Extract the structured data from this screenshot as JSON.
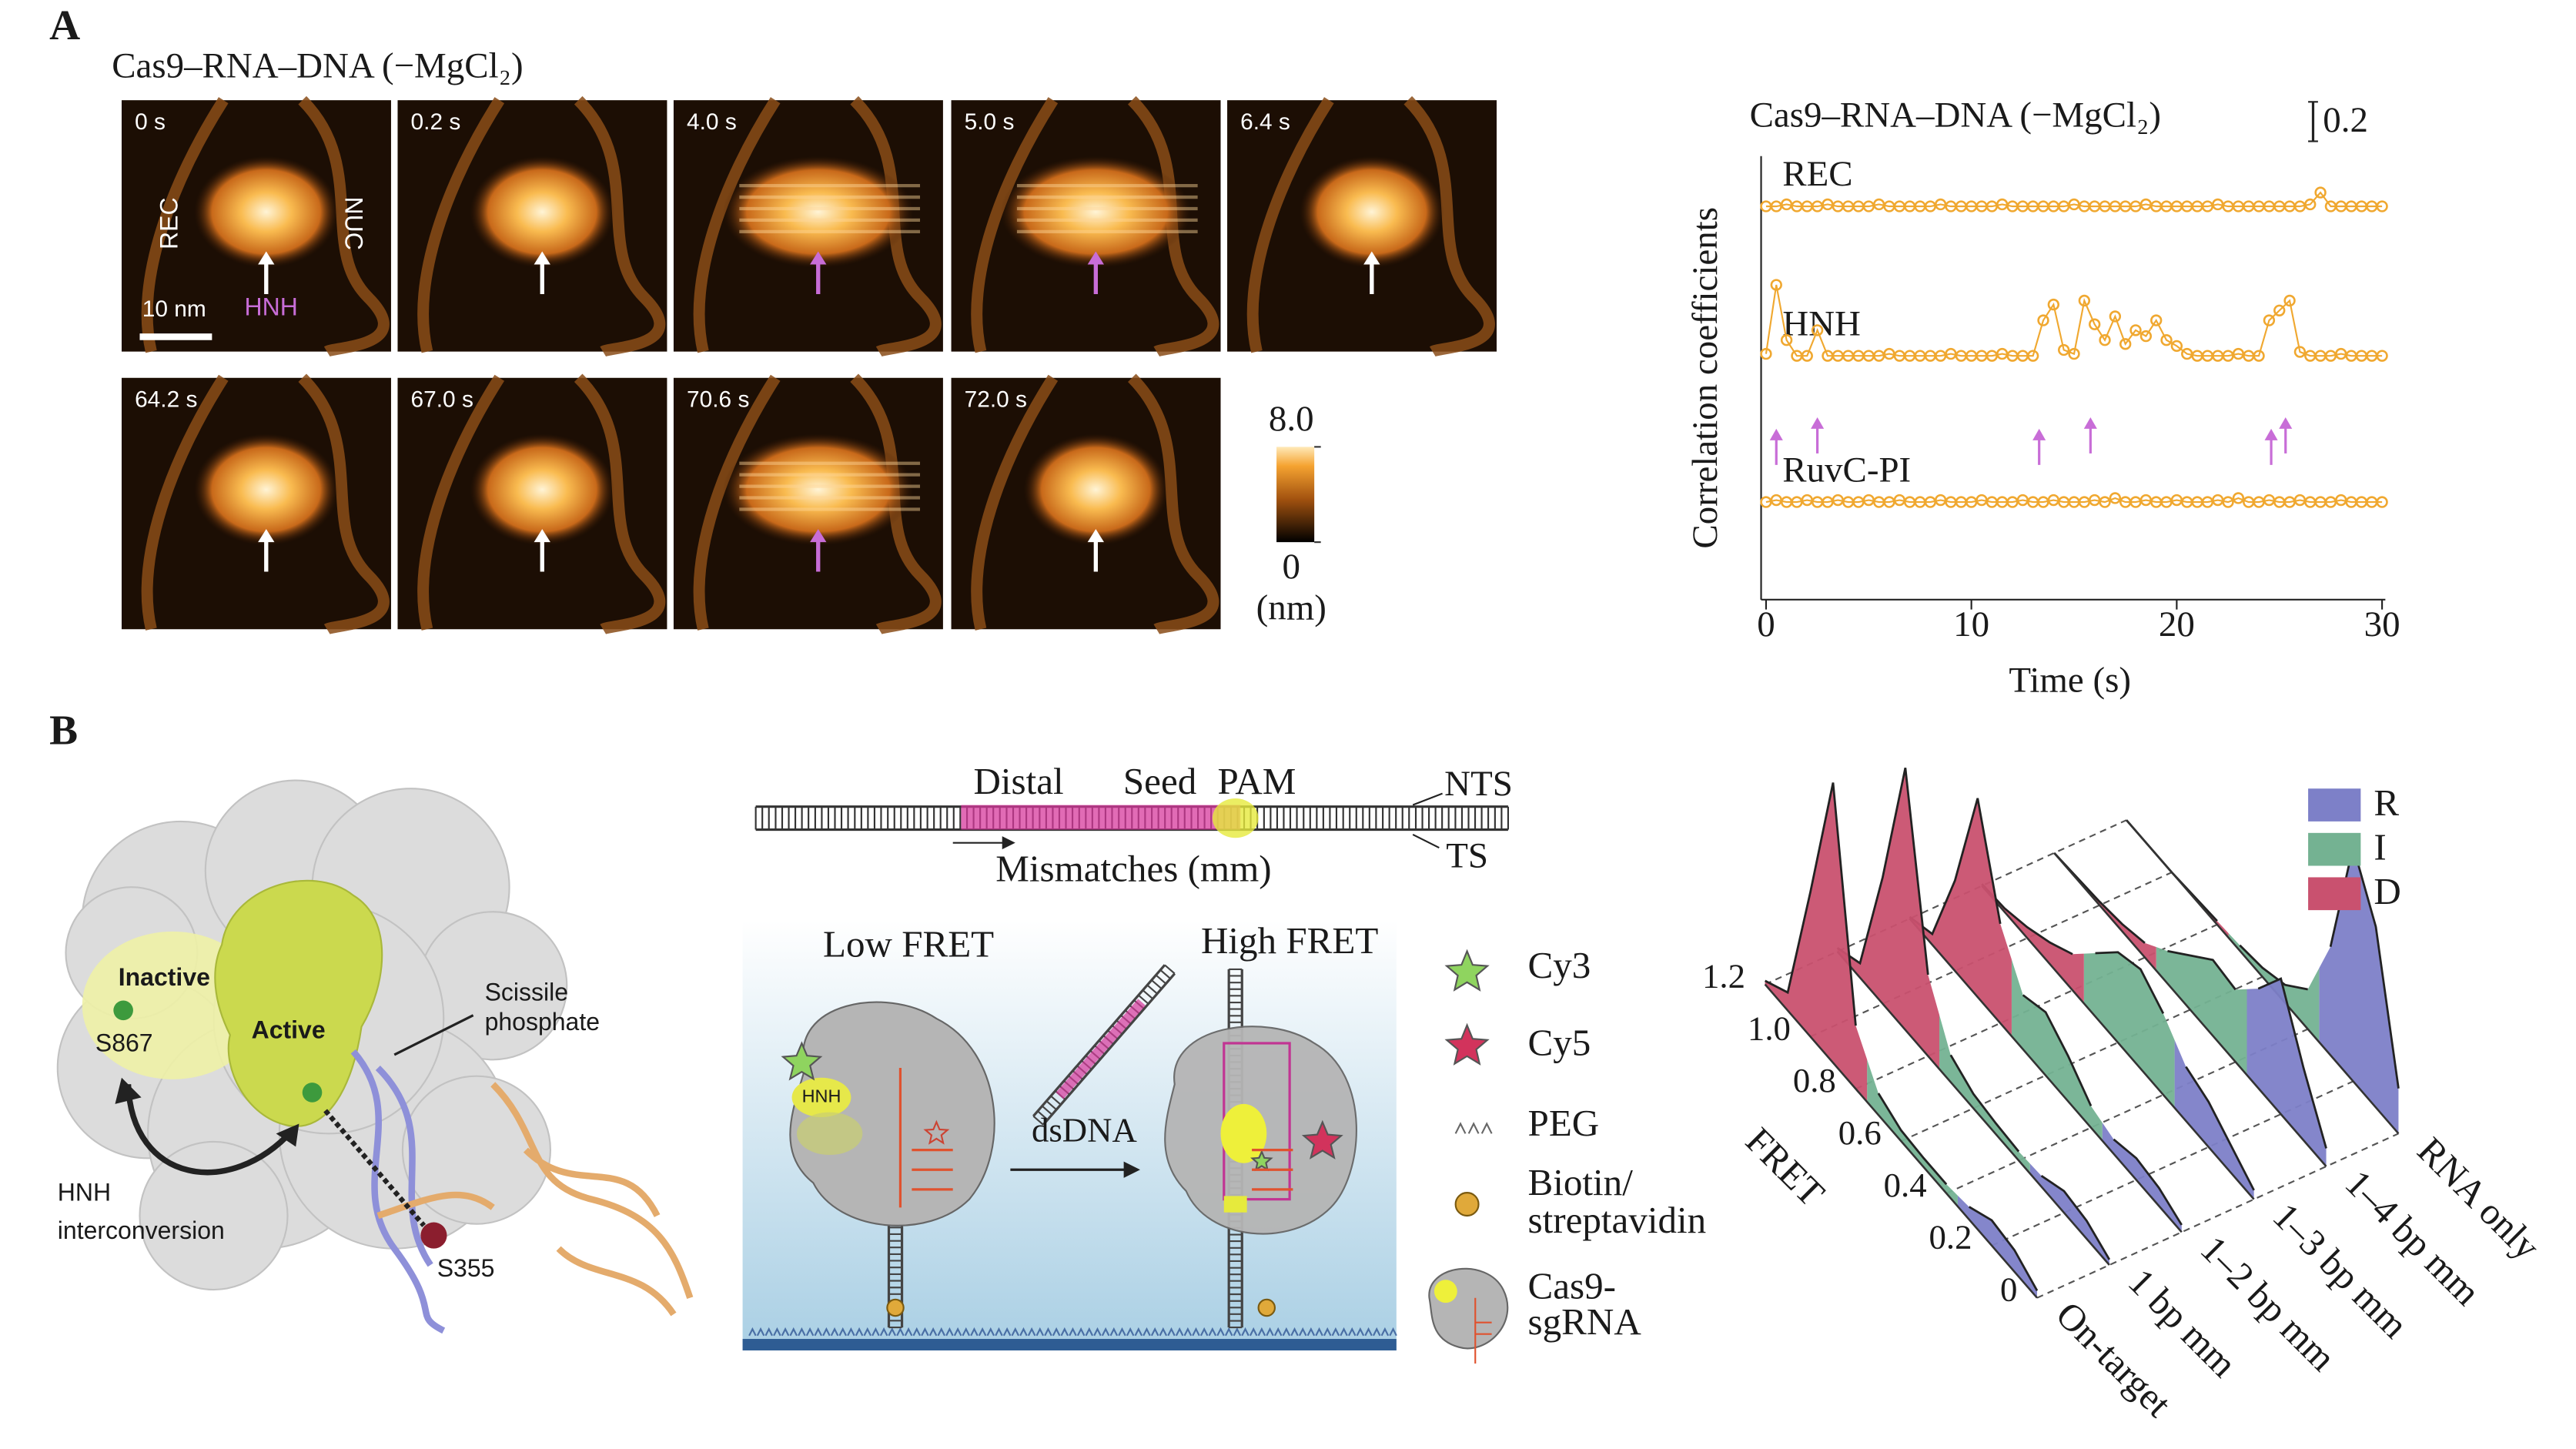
{
  "panel_a": {
    "label": "A",
    "heading": "Cas9–RNA–DNA (−MgCl₂)",
    "highlight_color": "#c86dd7",
    "frames": [
      {
        "time": "0 s",
        "arrow": "#ffffff"
      },
      {
        "time": "0.2 s",
        "arrow": "#ffffff"
      },
      {
        "time": "4.0 s",
        "arrow": "#c86dd7"
      },
      {
        "time": "5.0 s",
        "arrow": "#c86dd7"
      },
      {
        "time": "6.4 s",
        "arrow": "#ffffff"
      },
      {
        "time": "64.2 s",
        "arrow": "#ffffff"
      },
      {
        "time": "67.0 s",
        "arrow": "#ffffff"
      },
      {
        "time": "70.6 s",
        "arrow": "#c86dd7"
      },
      {
        "time": "72.0 s",
        "arrow": "#ffffff"
      }
    ],
    "frame_labels": {
      "rec": "REC",
      "nuc": "NUC",
      "hnh": "HNH",
      "scale": "10 nm"
    },
    "colorbar": {
      "range": [
        0,
        8
      ],
      "ticks": [
        {
          "value": 8,
          "label": "8.0"
        },
        0
      ],
      "unit": "(nm)"
    }
  },
  "chart_data": [
    {
      "type": "line",
      "title": "Cas9–RNA–DNA (−MgCl₂)",
      "y_label": "Correlation coefficients",
      "x_label": "Time (s)",
      "x": [
        0,
        0.5,
        1,
        1.5,
        2,
        2.5,
        3,
        3.5,
        4,
        4.5,
        5,
        5.5,
        6,
        6.5,
        7,
        7.5,
        8,
        8.5,
        9,
        9.5,
        10,
        10.5,
        11,
        11.5,
        12,
        12.5,
        13,
        13.5,
        14,
        14.5,
        15,
        15.5,
        16,
        16.5,
        17,
        17.5,
        18,
        18.5,
        19,
        19.5,
        20,
        20.5,
        21,
        21.5,
        22,
        22.5,
        23,
        23.5,
        24,
        24.5,
        25,
        25.5,
        26,
        26.5,
        27,
        27.5,
        28,
        28.5,
        29,
        29.5,
        30
      ],
      "xlim": [
        0,
        30
      ],
      "xticks": [
        0,
        10,
        20,
        30
      ],
      "scale_bar": 0.2,
      "arrows_x": [
        0.5,
        2.5,
        13.3,
        15.8,
        24.6,
        25.3
      ],
      "arrow_color": "#c86dd7",
      "series": [
        {
          "name": "REC",
          "color": "#f0a830",
          "values": [
            0.98,
            0.98,
            0.97,
            0.98,
            0.98,
            0.98,
            0.97,
            0.98,
            0.98,
            0.98,
            0.98,
            0.97,
            0.98,
            0.98,
            0.98,
            0.98,
            0.98,
            0.97,
            0.98,
            0.98,
            0.98,
            0.98,
            0.98,
            0.97,
            0.98,
            0.98,
            0.98,
            0.98,
            0.98,
            0.98,
            0.97,
            0.98,
            0.98,
            0.98,
            0.98,
            0.98,
            0.98,
            0.97,
            0.98,
            0.98,
            0.98,
            0.98,
            0.98,
            0.98,
            0.97,
            0.98,
            0.98,
            0.98,
            0.98,
            0.98,
            0.98,
            0.98,
            0.98,
            0.97,
            0.91,
            0.98,
            0.98,
            0.98,
            0.98,
            0.98,
            0.98
          ]
        },
        {
          "name": "HNH",
          "color": "#f0a830",
          "values": [
            0.97,
            0.62,
            0.9,
            0.98,
            0.98,
            0.85,
            0.98,
            0.98,
            0.98,
            0.98,
            0.98,
            0.98,
            0.97,
            0.98,
            0.98,
            0.98,
            0.98,
            0.98,
            0.97,
            0.98,
            0.98,
            0.98,
            0.98,
            0.97,
            0.98,
            0.98,
            0.98,
            0.8,
            0.72,
            0.95,
            0.97,
            0.7,
            0.82,
            0.9,
            0.78,
            0.92,
            0.85,
            0.88,
            0.8,
            0.9,
            0.93,
            0.97,
            0.98,
            0.98,
            0.98,
            0.98,
            0.97,
            0.98,
            0.98,
            0.8,
            0.75,
            0.7,
            0.96,
            0.98,
            0.98,
            0.98,
            0.97,
            0.98,
            0.98,
            0.98,
            0.98
          ]
        },
        {
          "name": "RuvC-PI",
          "color": "#f0a830",
          "values": [
            0.98,
            0.97,
            0.98,
            0.98,
            0.97,
            0.98,
            0.98,
            0.97,
            0.98,
            0.98,
            0.97,
            0.98,
            0.98,
            0.97,
            0.98,
            0.98,
            0.98,
            0.97,
            0.98,
            0.98,
            0.98,
            0.97,
            0.98,
            0.98,
            0.98,
            0.97,
            0.98,
            0.98,
            0.97,
            0.98,
            0.98,
            0.98,
            0.97,
            0.98,
            0.96,
            0.98,
            0.98,
            0.97,
            0.98,
            0.98,
            0.97,
            0.98,
            0.98,
            0.98,
            0.97,
            0.98,
            0.96,
            0.98,
            0.98,
            0.97,
            0.98,
            0.98,
            0.97,
            0.98,
            0.98,
            0.98,
            0.97,
            0.98,
            0.98,
            0.98,
            0.98
          ]
        }
      ]
    },
    {
      "type": "ridge",
      "x_label": "FRET",
      "categories": [
        "On-target",
        "1 bp mm",
        "1–2 bp mm",
        "1–3 bp mm",
        "1–4 bp mm",
        "RNA only"
      ],
      "x": [
        0,
        0.1,
        0.2,
        0.3,
        0.4,
        0.5,
        0.6,
        0.7,
        0.8,
        0.9,
        1,
        1.1,
        1.2
      ],
      "xlim": [
        0,
        1.2
      ],
      "xticks": [
        0,
        0.2,
        0.4,
        0.6,
        0.8,
        {
          "value": 1,
          "label": "1.0"
        },
        1.2
      ],
      "grid": true,
      "legend": "top-right",
      "series": [
        {
          "name": "R",
          "color": "#7d80c8",
          "values": [
            [
              0.04,
              0.12,
              0.14,
              0.07,
              null,
              null,
              null,
              null,
              null,
              null,
              null,
              null,
              null
            ],
            [
              0.03,
              0.1,
              0.12,
              0.06,
              null,
              null,
              null,
              null,
              null,
              null,
              null,
              null,
              null
            ],
            [
              0.04,
              0.1,
              0.12,
              0.08,
              null,
              null,
              null,
              null,
              null,
              null,
              null,
              null,
              null
            ],
            [
              0.05,
              0.15,
              0.25,
              0.3,
              null,
              null,
              null,
              null,
              null,
              null,
              null,
              null,
              null
            ],
            [
              0.1,
              0.4,
              0.75,
              0.55,
              null,
              null,
              null,
              null,
              null,
              null,
              null,
              null,
              null
            ],
            [
              0.25,
              1.0,
              1.3,
              0.6,
              null,
              null,
              null,
              null,
              null,
              null,
              null,
              null,
              null
            ]
          ]
        },
        {
          "name": "I",
          "color": "#74b292",
          "values": [
            [
              null,
              null,
              null,
              null,
              0.05,
              0.05,
              0.06,
              0.12,
              null,
              null,
              null,
              null,
              null
            ],
            [
              null,
              null,
              null,
              null,
              0.05,
              0.06,
              0.08,
              0.15,
              null,
              null,
              null,
              null,
              null
            ],
            [
              null,
              null,
              null,
              null,
              0.12,
              0.25,
              0.35,
              0.3,
              null,
              null,
              null,
              null,
              null
            ],
            [
              null,
              null,
              null,
              null,
              0.45,
              0.55,
              0.5,
              0.35,
              null,
              null,
              null,
              null,
              null
            ],
            [
              null,
              null,
              null,
              null,
              0.4,
              0.42,
              0.3,
              0.18,
              null,
              null,
              null,
              null,
              null
            ],
            [
              null,
              null,
              null,
              null,
              0.22,
              0.1,
              0.05,
              0.03,
              null,
              null,
              null,
              null,
              null
            ]
          ]
        },
        {
          "name": "D",
          "color": "#c9516f",
          "values": [
            [
              null,
              null,
              null,
              null,
              null,
              null,
              null,
              null,
              0.35,
              1.55,
              0.8,
              0.1,
              0.02
            ],
            [
              null,
              null,
              null,
              null,
              null,
              null,
              null,
              null,
              0.45,
              1.45,
              0.7,
              0.08,
              0.02
            ],
            [
              null,
              null,
              null,
              null,
              null,
              null,
              null,
              null,
              0.55,
              1.1,
              0.5,
              0.06,
              0.01
            ],
            [
              null,
              null,
              null,
              null,
              null,
              null,
              null,
              null,
              0.2,
              0.12,
              0.06,
              0.02,
              0.01
            ],
            [
              null,
              null,
              null,
              null,
              null,
              null,
              null,
              null,
              0.08,
              0.04,
              0.02,
              0.01,
              0
            ],
            [
              null,
              null,
              null,
              null,
              null,
              null,
              null,
              null,
              0.02,
              0.01,
              0,
              0,
              0
            ]
          ]
        }
      ]
    }
  ],
  "panel_b": {
    "label": "B",
    "structure": {
      "inactive": "Inactive",
      "active": "Active",
      "s867": "S867",
      "s355": "S355",
      "scissile": [
        "Scissile",
        "phosphate"
      ],
      "interconversion": [
        "HNH",
        "interconversion"
      ]
    },
    "schematic": {
      "distal": "Distal",
      "seed": "Seed",
      "pam": "PAM",
      "nts": "NTS",
      "ts": "TS",
      "mismatches": "Mismatches (mm)",
      "low_fret": "Low FRET",
      "high_fret": "High FRET",
      "dsdna": "dsDNA",
      "hnh": "HNH"
    },
    "legend": [
      [
        "Cy3"
      ],
      [
        "Cy5"
      ],
      [
        "PEG"
      ],
      [
        "Biotin/",
        "streptavidin"
      ],
      [
        "Cas9-",
        "sgRNA"
      ]
    ]
  }
}
